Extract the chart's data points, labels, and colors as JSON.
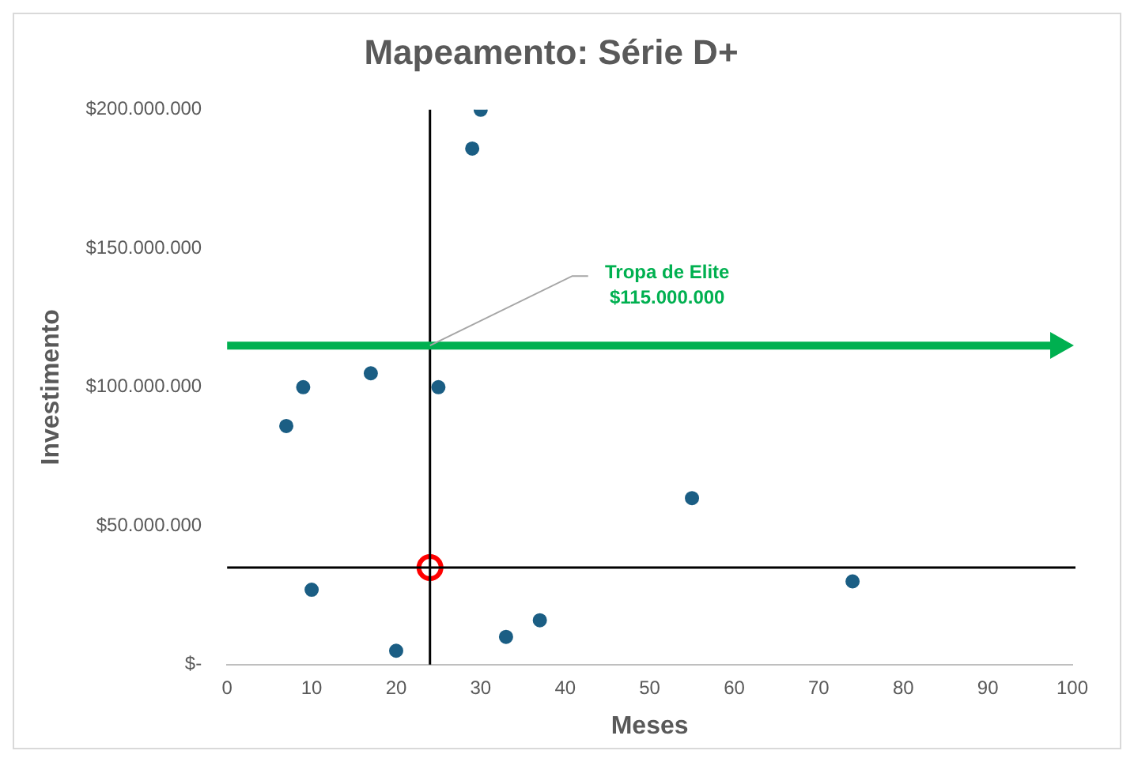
{
  "chart_data": {
    "type": "scatter",
    "title": "Mapeamento: Série D+",
    "xlabel": "Meses",
    "ylabel": "Investimento",
    "xlim": [
      0,
      100
    ],
    "xticks": [
      0,
      10,
      20,
      30,
      40,
      50,
      60,
      70,
      80,
      90,
      100
    ],
    "ylim": [
      0,
      200000000
    ],
    "yticks": [
      {
        "value": 0,
        "label": "$-"
      },
      {
        "value": 50000000,
        "label": "$50.000.000"
      },
      {
        "value": 100000000,
        "label": "$100.000.000"
      },
      {
        "value": 150000000,
        "label": "$150.000.000"
      },
      {
        "value": 200000000,
        "label": "$200.000.000"
      }
    ],
    "grid": false,
    "legend": false,
    "marker": "circle",
    "series": [
      {
        "color": "#1b5e84",
        "x": [
          30,
          29,
          17,
          9,
          25,
          7,
          55,
          10,
          74,
          20,
          33,
          37
        ],
        "values": [
          200000000,
          186000000,
          105000000,
          100000000,
          100000000,
          86000000,
          60000000,
          27000000,
          30000000,
          5000000,
          10000000,
          16000000
        ]
      },
      {
        "color": "#ff0000",
        "x": [
          24
        ],
        "values": [
          35000000
        ]
      }
    ],
    "ref_lines": [
      {
        "axis": "x",
        "value": 24,
        "color": "#000000"
      },
      {
        "axis": "y",
        "value": 35000000,
        "color": "#000000"
      },
      {
        "axis": "y",
        "value": 115000000,
        "color": "#00b050",
        "label": "Tropa de Elite $115.000.000"
      }
    ]
  }
}
